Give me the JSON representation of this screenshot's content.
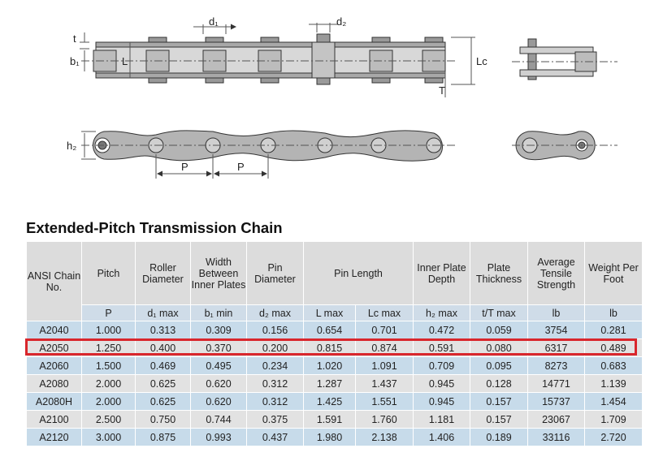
{
  "diagram": {
    "labels": {
      "d1": "d₁",
      "d2": "d₂",
      "t": "t",
      "b1": "b₁",
      "L": "L",
      "Lc": "Lc",
      "T": "T",
      "h2": "h₂",
      "P_left": "P",
      "P_right": "P"
    }
  },
  "title": "Extended-Pitch Transmission Chain",
  "table": {
    "headers": [
      "ANSI Chain No.",
      "Pitch",
      "Roller Diameter",
      "Width Between Inner Plates",
      "Pin Diameter",
      "Pin Length",
      "Inner Plate Depth",
      "Plate Thickness",
      "Average Tensile Strength",
      "Weight Per Foot"
    ],
    "units": [
      "P",
      "d₁ max",
      "b₁ min",
      "d₂ max",
      "L max",
      "Lc max",
      "h₂ max",
      "t/T max",
      "lb",
      "lb"
    ],
    "rows": [
      [
        "A2040",
        "1.000",
        "0.313",
        "0.309",
        "0.156",
        "0.654",
        "0.701",
        "0.472",
        "0.059",
        "3754",
        "0.281"
      ],
      [
        "A2050",
        "1.250",
        "0.400",
        "0.370",
        "0.200",
        "0.815",
        "0.874",
        "0.591",
        "0.080",
        "6317",
        "0.489"
      ],
      [
        "A2060",
        "1.500",
        "0.469",
        "0.495",
        "0.234",
        "1.020",
        "1.091",
        "0.709",
        "0.095",
        "8273",
        "0.683"
      ],
      [
        "A2080",
        "2.000",
        "0.625",
        "0.620",
        "0.312",
        "1.287",
        "1.437",
        "0.945",
        "0.128",
        "14771",
        "1.139"
      ],
      [
        "A2080H",
        "2.000",
        "0.625",
        "0.620",
        "0.312",
        "1.425",
        "1.551",
        "0.945",
        "0.157",
        "15737",
        "1.454"
      ],
      [
        "A2100",
        "2.500",
        "0.750",
        "0.744",
        "0.375",
        "1.591",
        "1.760",
        "1.181",
        "0.157",
        "23067",
        "1.709"
      ],
      [
        "A2120",
        "3.000",
        "0.875",
        "0.993",
        "0.437",
        "1.980",
        "2.138",
        "1.406",
        "0.189",
        "33116",
        "2.720"
      ]
    ],
    "highlighted_row": "A2050"
  },
  "colors": {
    "row_blue": "#c7dbea",
    "row_gray": "#e2e2e2",
    "header_gray": "#dcdcdc",
    "highlight": "#d9262c",
    "chain_fill": "#b4b4b4"
  }
}
